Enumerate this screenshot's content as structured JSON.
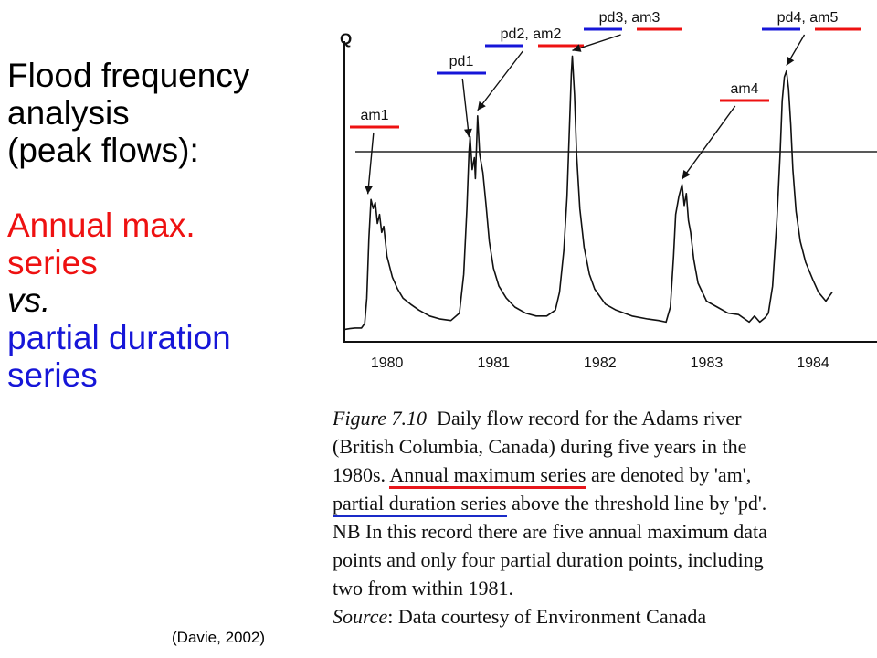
{
  "left_title": {
    "line1": "Flood frequency",
    "line2": "analysis",
    "line3": "(peak flows):"
  },
  "comparison": {
    "annual_line1": "Annual max.",
    "annual_line2": "series",
    "vs": "vs.",
    "partial_line1": "partial duration",
    "partial_line2": "series"
  },
  "citation": "(Davie, 2002)",
  "colors": {
    "annual_max": "#ee1111",
    "partial_duration": "#1616d8",
    "text": "#000000"
  },
  "chart_data": {
    "type": "line",
    "ylabel": "Q",
    "xlabel": "",
    "x_ticks": [
      "1980",
      "1981",
      "1982",
      "1983",
      "1984"
    ],
    "x_range": [
      1979.6,
      1984.6
    ],
    "y_range": [
      0,
      1
    ],
    "threshold": 0.63,
    "grid": false,
    "series": [
      {
        "values": [
          [
            1979.6,
            0.035
          ],
          [
            1979.65,
            0.038
          ],
          [
            1979.7,
            0.04
          ],
          [
            1979.76,
            0.04
          ],
          [
            1979.79,
            0.055
          ],
          [
            1979.81,
            0.14
          ],
          [
            1979.83,
            0.34
          ],
          [
            1979.85,
            0.47
          ],
          [
            1979.87,
            0.44
          ],
          [
            1979.89,
            0.46
          ],
          [
            1979.91,
            0.39
          ],
          [
            1979.93,
            0.42
          ],
          [
            1979.95,
            0.36
          ],
          [
            1979.97,
            0.38
          ],
          [
            1980.0,
            0.28
          ],
          [
            1980.05,
            0.21
          ],
          [
            1980.1,
            0.17
          ],
          [
            1980.15,
            0.14
          ],
          [
            1980.22,
            0.12
          ],
          [
            1980.3,
            0.1
          ],
          [
            1980.4,
            0.08
          ],
          [
            1980.5,
            0.07
          ],
          [
            1980.6,
            0.065
          ],
          [
            1980.68,
            0.09
          ],
          [
            1980.72,
            0.22
          ],
          [
            1980.75,
            0.44
          ],
          [
            1980.77,
            0.63
          ],
          [
            1980.78,
            0.68
          ],
          [
            1980.8,
            0.57
          ],
          [
            1980.82,
            0.61
          ],
          [
            1980.83,
            0.54
          ],
          [
            1980.85,
            0.75
          ],
          [
            1980.87,
            0.62
          ],
          [
            1980.9,
            0.56
          ],
          [
            1980.93,
            0.45
          ],
          [
            1980.96,
            0.33
          ],
          [
            1981.0,
            0.24
          ],
          [
            1981.05,
            0.18
          ],
          [
            1981.12,
            0.14
          ],
          [
            1981.2,
            0.11
          ],
          [
            1981.3,
            0.09
          ],
          [
            1981.4,
            0.08
          ],
          [
            1981.5,
            0.08
          ],
          [
            1981.58,
            0.1
          ],
          [
            1981.62,
            0.16
          ],
          [
            1981.66,
            0.3
          ],
          [
            1981.69,
            0.48
          ],
          [
            1981.71,
            0.68
          ],
          [
            1981.73,
            0.89
          ],
          [
            1981.74,
            0.95
          ],
          [
            1981.76,
            0.82
          ],
          [
            1981.78,
            0.62
          ],
          [
            1981.81,
            0.44
          ],
          [
            1981.85,
            0.31
          ],
          [
            1981.9,
            0.22
          ],
          [
            1981.95,
            0.17
          ],
          [
            1982.05,
            0.12
          ],
          [
            1982.15,
            0.1
          ],
          [
            1982.3,
            0.08
          ],
          [
            1982.45,
            0.07
          ],
          [
            1982.55,
            0.065
          ],
          [
            1982.62,
            0.06
          ],
          [
            1982.66,
            0.11
          ],
          [
            1982.69,
            0.28
          ],
          [
            1982.71,
            0.42
          ],
          [
            1982.74,
            0.48
          ],
          [
            1982.77,
            0.52
          ],
          [
            1982.79,
            0.45
          ],
          [
            1982.81,
            0.49
          ],
          [
            1982.83,
            0.4
          ],
          [
            1982.85,
            0.36
          ],
          [
            1982.88,
            0.27
          ],
          [
            1982.92,
            0.19
          ],
          [
            1983.0,
            0.13
          ],
          [
            1983.1,
            0.11
          ],
          [
            1983.2,
            0.09
          ],
          [
            1983.3,
            0.085
          ],
          [
            1983.4,
            0.06
          ],
          [
            1983.45,
            0.08
          ],
          [
            1983.5,
            0.06
          ],
          [
            1983.55,
            0.075
          ],
          [
            1983.58,
            0.09
          ],
          [
            1983.62,
            0.18
          ],
          [
            1983.66,
            0.4
          ],
          [
            1983.69,
            0.62
          ],
          [
            1983.71,
            0.8
          ],
          [
            1983.73,
            0.88
          ],
          [
            1983.75,
            0.9
          ],
          [
            1983.77,
            0.84
          ],
          [
            1983.79,
            0.72
          ],
          [
            1983.81,
            0.57
          ],
          [
            1983.84,
            0.43
          ],
          [
            1983.88,
            0.33
          ],
          [
            1983.93,
            0.26
          ],
          [
            1984.0,
            0.2
          ],
          [
            1984.05,
            0.16
          ],
          [
            1984.12,
            0.13
          ],
          [
            1984.18,
            0.16
          ]
        ]
      }
    ],
    "annotations": [
      {
        "label": "am1",
        "type": "am",
        "x": 1979.82,
        "y": 0.47
      },
      {
        "label": "pd1",
        "type": "pd",
        "x": 1980.77,
        "y": 0.66
      },
      {
        "label": "pd2, am2",
        "type": "both",
        "x": 1980.85,
        "y": 0.75
      },
      {
        "label": "pd3, am3",
        "type": "both",
        "x": 1981.74,
        "y": 0.95
      },
      {
        "label": "am4",
        "type": "am",
        "x": 1982.77,
        "y": 0.52
      },
      {
        "label": "pd4, am5",
        "type": "both",
        "x": 1983.75,
        "y": 0.9
      }
    ]
  },
  "caption": {
    "fig_label": "Figure 7.10",
    "line1_rest": "  Daily flow record for the Adams river",
    "line2": "(British Columbia, Canada) during five years in the",
    "line3_pre": "1980s. ",
    "line3_red": "Annual maximum series",
    "line3_post": " are denoted by 'am',",
    "line4_blue": "partial duration series",
    "line4_post": " above the threshold line by 'pd'.",
    "line5": "NB In this record there are five annual maximum data",
    "line6": "points and only four partial duration points, including",
    "line7": "two from within 1981.",
    "source_label": "Source",
    "source_rest": ": Data courtesy of Environment Canada"
  }
}
